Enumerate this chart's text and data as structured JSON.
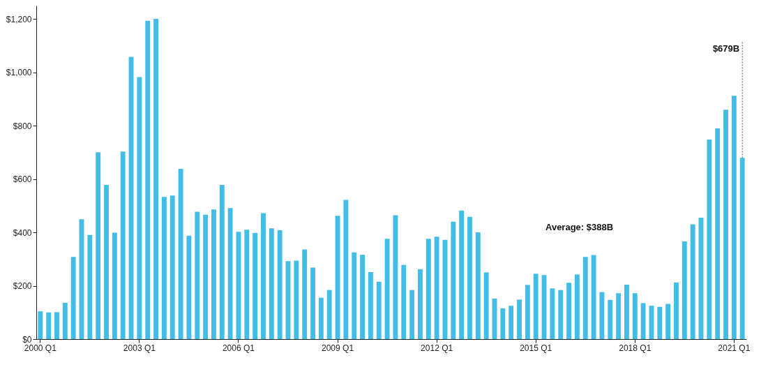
{
  "chart_data": {
    "type": "bar",
    "categories": [
      "2000 Q1",
      null,
      null,
      null,
      null,
      null,
      null,
      null,
      null,
      null,
      null,
      null,
      "2003 Q1",
      null,
      null,
      null,
      null,
      null,
      null,
      null,
      null,
      null,
      null,
      null,
      "2006 Q1",
      null,
      null,
      null,
      null,
      null,
      null,
      null,
      null,
      null,
      null,
      null,
      "2009 Q1",
      null,
      null,
      null,
      null,
      null,
      null,
      null,
      null,
      null,
      null,
      null,
      "2012 Q1",
      null,
      null,
      null,
      null,
      null,
      null,
      null,
      null,
      null,
      null,
      null,
      "2015 Q1",
      null,
      null,
      null,
      null,
      null,
      null,
      null,
      null,
      null,
      null,
      null,
      "2018 Q1",
      null,
      null,
      null,
      null,
      null,
      null,
      null,
      null,
      null,
      null,
      null,
      "2021 Q1",
      null
    ],
    "values": [
      104,
      100,
      101,
      136,
      308,
      449,
      390,
      700,
      578,
      399,
      703,
      1058,
      982,
      1193,
      1200,
      533,
      538,
      638,
      388,
      477,
      466,
      486,
      578,
      491,
      402,
      410,
      398,
      472,
      415,
      408,
      292,
      294,
      336,
      268,
      155,
      184,
      462,
      522,
      325,
      316,
      251,
      215,
      376,
      464,
      278,
      184,
      262,
      376,
      384,
      372,
      440,
      482,
      458,
      400,
      250,
      152,
      115,
      125,
      148,
      203,
      245,
      240,
      190,
      184,
      211,
      242,
      308,
      315,
      176,
      147,
      172,
      204,
      172,
      135,
      125,
      121,
      132,
      212,
      366,
      430,
      455,
      748,
      790,
      860,
      912,
      679
    ],
    "color": "#41bde8",
    "ylim": [
      0,
      1250
    ],
    "yticks": [
      {
        "value": 0,
        "label": "$0"
      },
      {
        "value": 200,
        "label": "$200"
      },
      {
        "value": 400,
        "label": "$400"
      },
      {
        "value": 600,
        "label": "$600"
      },
      {
        "value": 800,
        "label": "$800"
      },
      {
        "value": 1000,
        "label": "$1,000"
      },
      {
        "value": 1200,
        "label": "$1,200"
      }
    ],
    "grid": false,
    "value_labels": [
      null,
      null,
      null,
      null,
      null,
      null,
      null,
      null,
      null,
      null,
      null,
      null,
      null,
      null,
      null,
      null,
      null,
      null,
      null,
      null,
      null,
      null,
      null,
      null,
      null,
      null,
      null,
      null,
      null,
      null,
      null,
      null,
      null,
      null,
      null,
      null,
      null,
      null,
      null,
      null,
      null,
      null,
      null,
      null,
      null,
      null,
      null,
      null,
      null,
      null,
      null,
      null,
      null,
      null,
      null,
      null,
      null,
      null,
      null,
      null,
      null,
      null,
      null,
      null,
      null,
      null,
      null,
      null,
      null,
      null,
      null,
      null,
      null,
      null,
      null,
      null,
      null,
      null,
      null,
      null,
      null,
      null,
      null,
      null,
      null,
      "$679B"
    ],
    "annotations": [
      "Average: $388B"
    ]
  }
}
